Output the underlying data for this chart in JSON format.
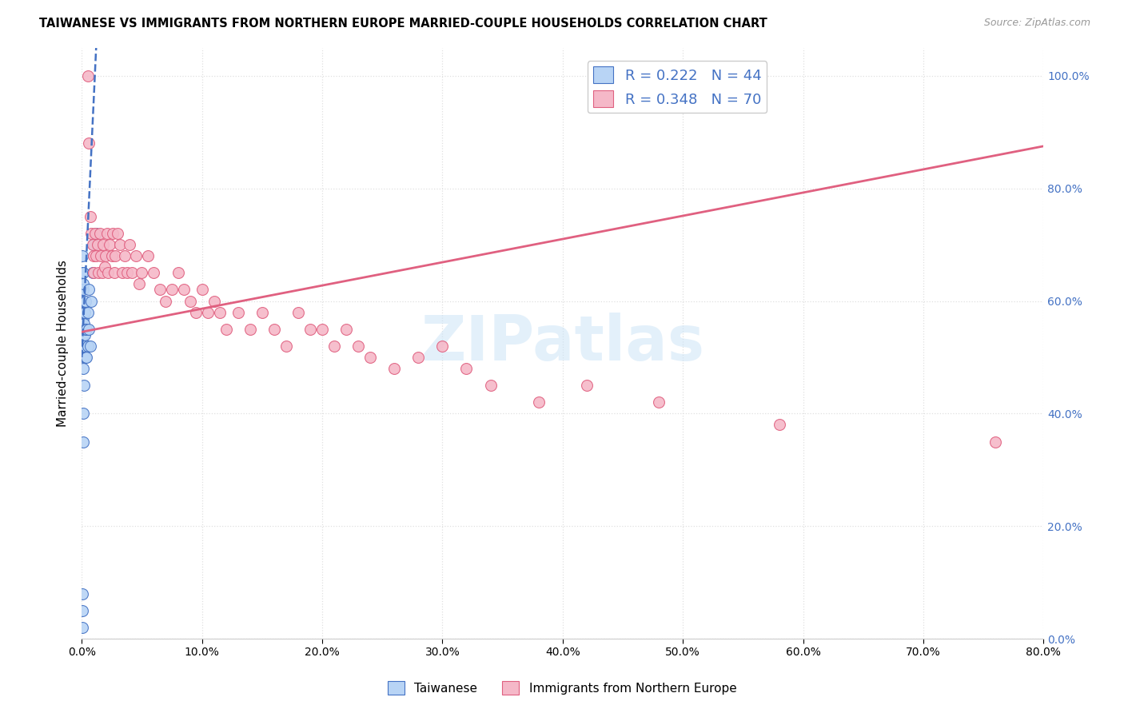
{
  "title": "TAIWANESE VS IMMIGRANTS FROM NORTHERN EUROPE MARRIED-COUPLE HOUSEHOLDS CORRELATION CHART",
  "source": "Source: ZipAtlas.com",
  "ylabel": "Married-couple Households",
  "watermark": "ZIPatlas",
  "legend": [
    {
      "label": "Taiwanese",
      "R": 0.222,
      "N": 44,
      "color": "#b8d4f5",
      "line_color": "#4472c4",
      "line_style": "--"
    },
    {
      "label": "Immigrants from Northern Europe",
      "R": 0.348,
      "N": 70,
      "color": "#f5b8c8",
      "line_color": "#e06080",
      "line_style": "-"
    }
  ],
  "taiwanese_x": [
    0.0005,
    0.0005,
    0.0005,
    0.0005,
    0.0005,
    0.0005,
    0.0005,
    0.0005,
    0.0005,
    0.0005,
    0.001,
    0.001,
    0.001,
    0.001,
    0.001,
    0.001,
    0.001,
    0.001,
    0.0015,
    0.0015,
    0.0015,
    0.0015,
    0.0015,
    0.002,
    0.002,
    0.002,
    0.002,
    0.0025,
    0.0025,
    0.0025,
    0.003,
    0.003,
    0.003,
    0.004,
    0.004,
    0.005,
    0.005,
    0.006,
    0.006,
    0.007,
    0.008,
    0.009,
    0.01,
    0.012
  ],
  "taiwanese_y": [
    0.02,
    0.05,
    0.08,
    0.55,
    0.57,
    0.58,
    0.6,
    0.62,
    0.65,
    0.68,
    0.35,
    0.48,
    0.52,
    0.54,
    0.57,
    0.6,
    0.62,
    0.65,
    0.4,
    0.52,
    0.55,
    0.58,
    0.63,
    0.45,
    0.52,
    0.56,
    0.6,
    0.5,
    0.54,
    0.58,
    0.5,
    0.55,
    0.6,
    0.5,
    0.55,
    0.52,
    0.58,
    0.55,
    0.62,
    0.52,
    0.6,
    0.65,
    0.7,
    0.72
  ],
  "northern_europe_x": [
    0.005,
    0.006,
    0.007,
    0.008,
    0.009,
    0.01,
    0.01,
    0.011,
    0.012,
    0.013,
    0.014,
    0.015,
    0.016,
    0.017,
    0.018,
    0.019,
    0.02,
    0.021,
    0.022,
    0.023,
    0.025,
    0.026,
    0.027,
    0.028,
    0.03,
    0.032,
    0.034,
    0.036,
    0.038,
    0.04,
    0.042,
    0.045,
    0.048,
    0.05,
    0.055,
    0.06,
    0.065,
    0.07,
    0.075,
    0.08,
    0.085,
    0.09,
    0.095,
    0.1,
    0.105,
    0.11,
    0.115,
    0.12,
    0.13,
    0.14,
    0.15,
    0.16,
    0.17,
    0.18,
    0.19,
    0.2,
    0.21,
    0.22,
    0.23,
    0.24,
    0.26,
    0.28,
    0.3,
    0.32,
    0.34,
    0.38,
    0.42,
    0.48,
    0.58,
    0.76
  ],
  "northern_europe_y": [
    1.0,
    0.88,
    0.75,
    0.72,
    0.7,
    0.68,
    0.65,
    0.72,
    0.68,
    0.7,
    0.65,
    0.72,
    0.68,
    0.65,
    0.7,
    0.66,
    0.68,
    0.72,
    0.65,
    0.7,
    0.68,
    0.72,
    0.65,
    0.68,
    0.72,
    0.7,
    0.65,
    0.68,
    0.65,
    0.7,
    0.65,
    0.68,
    0.63,
    0.65,
    0.68,
    0.65,
    0.62,
    0.6,
    0.62,
    0.65,
    0.62,
    0.6,
    0.58,
    0.62,
    0.58,
    0.6,
    0.58,
    0.55,
    0.58,
    0.55,
    0.58,
    0.55,
    0.52,
    0.58,
    0.55,
    0.55,
    0.52,
    0.55,
    0.52,
    0.5,
    0.48,
    0.5,
    0.52,
    0.48,
    0.45,
    0.42,
    0.45,
    0.42,
    0.38,
    0.35
  ],
  "tw_line_x": [
    0.0,
    0.012
  ],
  "tw_line_y_intercept": 0.52,
  "tw_line_slope": 8.0,
  "ne_line_x0": 0.0,
  "ne_line_y0": 0.545,
  "ne_line_x1": 0.8,
  "ne_line_y1": 0.875,
  "xlim": [
    0.0,
    0.8
  ],
  "ylim": [
    0.0,
    1.05
  ],
  "grid_color": "#e0e0e0",
  "background_color": "#ffffff",
  "tick_label_color": "#4472c4"
}
